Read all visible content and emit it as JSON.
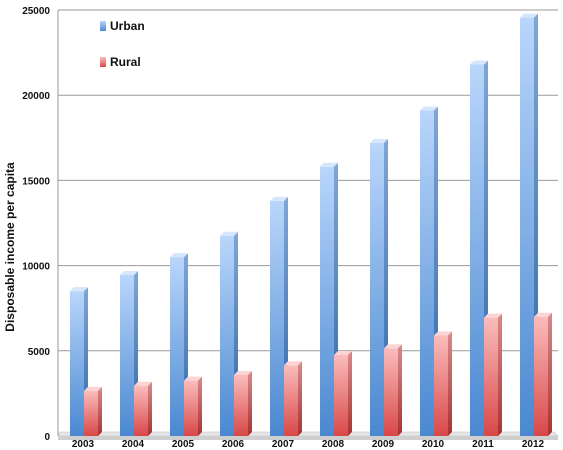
{
  "chart_data": {
    "type": "bar",
    "title": "",
    "xlabel": "",
    "ylabel": "Disposable income per capita",
    "ylim": [
      0,
      25000
    ],
    "yticks": [
      0,
      5000,
      10000,
      15000,
      20000,
      25000
    ],
    "grid": true,
    "legend_position": "top-left",
    "categories": [
      "2003",
      "2004",
      "2005",
      "2006",
      "2007",
      "2008",
      "2009",
      "2010",
      "2011",
      "2012"
    ],
    "series": [
      {
        "name": "Urban",
        "color": "#5a94d6",
        "values": [
          8500,
          9450,
          10500,
          11750,
          13800,
          15800,
          17200,
          19100,
          21800,
          24550
        ]
      },
      {
        "name": "Rural",
        "color": "#e25a5a",
        "values": [
          2650,
          2950,
          3250,
          3580,
          4150,
          4750,
          5150,
          5900,
          6950,
          7000
        ]
      }
    ]
  }
}
